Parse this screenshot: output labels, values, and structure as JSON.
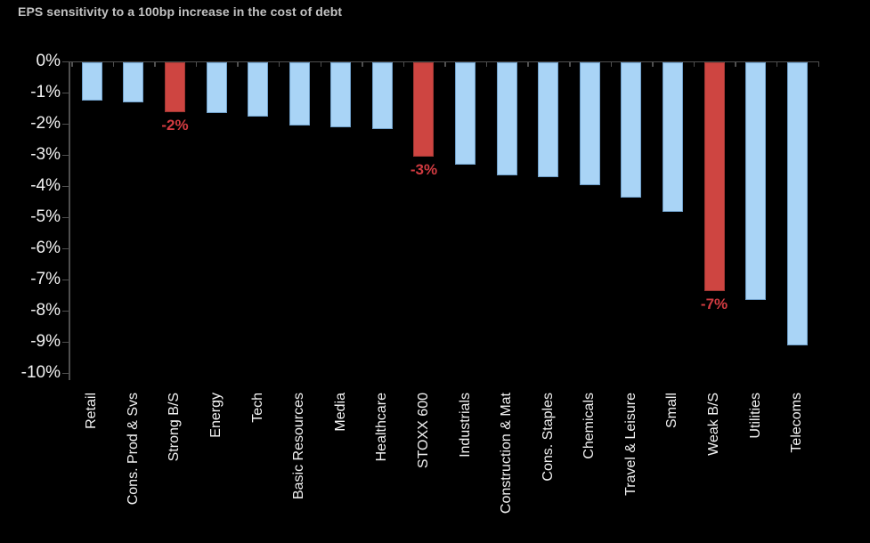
{
  "chart_data": {
    "type": "bar",
    "title": "EPS sensitivity to a 100bp increase in the cost of debt",
    "xlabel": "",
    "ylabel": "",
    "ylim": [
      0,
      -10
    ],
    "grid": false,
    "legend": "none",
    "y_ticks": [
      "0%",
      "-1%",
      "-2%",
      "-3%",
      "-4%",
      "-5%",
      "-6%",
      "-7%",
      "-8%",
      "-9%",
      "-10%"
    ],
    "categories": [
      "Retail",
      "Cons. Prod & Svs",
      "Strong B/S",
      "Energy",
      "Tech",
      "Basic Resources",
      "Media",
      "Healthcare",
      "STOXX 600",
      "Industrials",
      "Construction & Mat",
      "Cons. Staples",
      "Chemicals",
      "Travel & Leisure",
      "Small",
      "Weak B/S",
      "Utilities",
      "Telecoms"
    ],
    "values": [
      -1.25,
      -1.3,
      -1.6,
      -1.65,
      -1.75,
      -2.05,
      -2.1,
      -2.15,
      -3.05,
      -3.3,
      -3.65,
      -3.7,
      -3.95,
      -4.35,
      -4.8,
      -7.35,
      -7.65,
      -9.1
    ],
    "highlighted": [
      {
        "index": 2,
        "category": "Strong B/S",
        "label": "-2%"
      },
      {
        "index": 8,
        "category": "STOXX 600",
        "label": "-3%"
      },
      {
        "index": 15,
        "category": "Weak B/S",
        "label": "-7%"
      }
    ],
    "colors": {
      "background": "#000000",
      "bar": "#a9d4f6",
      "bar_edge": "#6f9fc9",
      "highlight_bar": "#ce4541",
      "highlight_edge": "#9e3733",
      "highlight_label": "#d23b41",
      "axis": "#4f4f4f",
      "tick_text": "#f2f2f2",
      "title": "#c3c3c3"
    }
  }
}
